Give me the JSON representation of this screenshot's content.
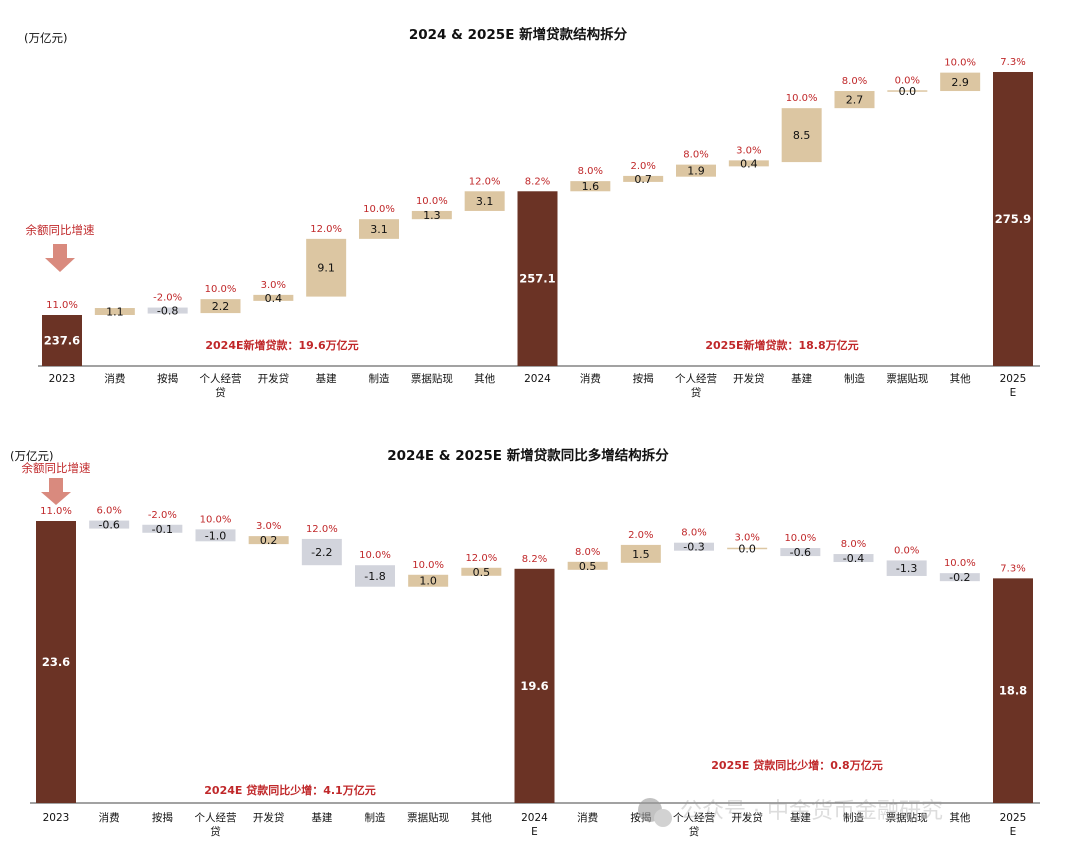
{
  "chart_data": [
    {
      "type": "bar",
      "subtype": "waterfall",
      "title": "2024 & 2025E 新增贷款结构拆分",
      "unit_label": "(万亿元)",
      "growth_label": "余额同比增速",
      "categories": [
        "2023",
        "消费",
        "按揭",
        "个人经营贷",
        "开发贷",
        "基建",
        "制造",
        "票据贴现",
        "其他",
        "2024",
        "消费",
        "按揭",
        "个人经营贷",
        "开发贷",
        "基建",
        "制造",
        "票据贴现",
        "其他",
        "2025E"
      ],
      "kinds": [
        "total",
        "delta",
        "delta",
        "delta",
        "delta",
        "delta",
        "delta",
        "delta",
        "delta",
        "total",
        "delta",
        "delta",
        "delta",
        "delta",
        "delta",
        "delta",
        "delta",
        "delta",
        "total"
      ],
      "values": [
        237.6,
        1.1,
        -0.8,
        2.2,
        0.4,
        9.1,
        3.1,
        1.3,
        3.1,
        257.1,
        1.6,
        0.7,
        1.9,
        0.4,
        8.5,
        2.7,
        0.0,
        2.9,
        275.9
      ],
      "value_labels": [
        "237.6",
        "1.1",
        "-0.8",
        "2.2",
        "0.4",
        "9.1",
        "3.1",
        "1.3",
        "3.1",
        "257.1",
        "1.6",
        "0.7",
        "1.9",
        "0.4",
        "8.5",
        "2.7",
        "0.0",
        "2.9",
        "275.9"
      ],
      "growth_rates": [
        "11.0%",
        "",
        "-2.0%",
        "10.0%",
        "3.0%",
        "12.0%",
        "10.0%",
        "10.0%",
        "12.0%",
        "8.2%",
        "8.0%",
        "2.0%",
        "8.0%",
        "3.0%",
        "10.0%",
        "8.0%",
        "0.0%",
        "10.0%",
        "7.3%"
      ],
      "annotations": [
        "2024E新增贷款：19.6万亿元",
        "2025E新增贷款：18.8万亿元"
      ]
    },
    {
      "type": "bar",
      "subtype": "waterfall",
      "title": "2024E & 2025E 新增贷款同比多增结构拆分",
      "unit_label": "(万亿元)",
      "growth_label": "余额同比增速",
      "categories": [
        "2023",
        "消费",
        "按揭",
        "个人经营贷",
        "开发贷",
        "基建",
        "制造",
        "票据贴现",
        "其他",
        "2024E",
        "消费",
        "按揭",
        "个人经营贷",
        "开发贷",
        "基建",
        "制造",
        "票据贴现",
        "其他",
        "2025E"
      ],
      "kinds": [
        "total",
        "delta",
        "delta",
        "delta",
        "delta",
        "delta",
        "delta",
        "delta",
        "delta",
        "total",
        "delta",
        "delta",
        "delta",
        "delta",
        "delta",
        "delta",
        "delta",
        "delta",
        "total"
      ],
      "values": [
        23.6,
        -0.6,
        -0.1,
        -1.0,
        0.2,
        -2.2,
        -1.8,
        1.0,
        0.5,
        19.6,
        0.5,
        1.5,
        -0.3,
        0.0,
        -0.6,
        -0.4,
        -1.3,
        -0.2,
        18.8
      ],
      "value_labels": [
        "23.6",
        "-0.6",
        "-0.1",
        "-1.0",
        "0.2",
        "-2.2",
        "-1.8",
        "1.0",
        "0.5",
        "19.6",
        "0.5",
        "1.5",
        "-0.3",
        "0.0",
        "-0.6",
        "-0.4",
        "-1.3",
        "-0.2",
        "18.8"
      ],
      "growth_rates": [
        "11.0%",
        "6.0%",
        "-2.0%",
        "10.0%",
        "3.0%",
        "12.0%",
        "10.0%",
        "10.0%",
        "12.0%",
        "8.2%",
        "8.0%",
        "2.0%",
        "8.0%",
        "3.0%",
        "10.0%",
        "8.0%",
        "0.0%",
        "10.0%",
        "7.3%"
      ],
      "annotations": [
        "2024E 贷款同比少增：4.1万亿元",
        "2025E 贷款同比少增：0.8万亿元"
      ]
    }
  ],
  "watermark": "公众号 · 中金货币金融研究",
  "colors": {
    "total": "#6b3325",
    "increase": "#dcc6a2",
    "decrease": "#d2d4dc",
    "growth_text": "#c0282a",
    "arrow": "#d98a7e"
  }
}
